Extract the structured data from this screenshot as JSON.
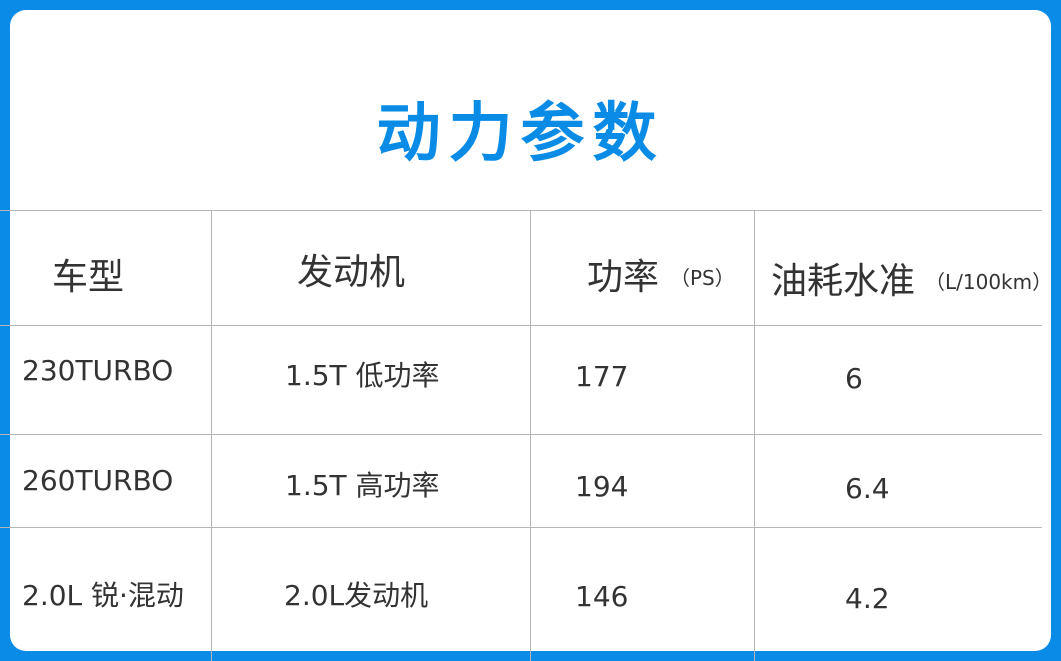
{
  "title": "动力参数",
  "colors": {
    "accent": "#0a8ce6"
  },
  "headers": [
    {
      "label": "车型",
      "unit": ""
    },
    {
      "label": "发动机",
      "unit": ""
    },
    {
      "label": "功率",
      "unit": "（PS）"
    },
    {
      "label": "油耗水准",
      "unit": "（L/100km）"
    }
  ],
  "rows": [
    {
      "model": "230TURBO",
      "engine": "1.5T 低功率",
      "power": "177",
      "fuel": "6"
    },
    {
      "model": "260TURBO",
      "engine": "1.5T 高功率",
      "power": "194",
      "fuel": "6.4"
    },
    {
      "model": "2.0L 锐·混动",
      "engine": "2.0L发动机",
      "power": "146",
      "fuel": "4.2"
    }
  ]
}
